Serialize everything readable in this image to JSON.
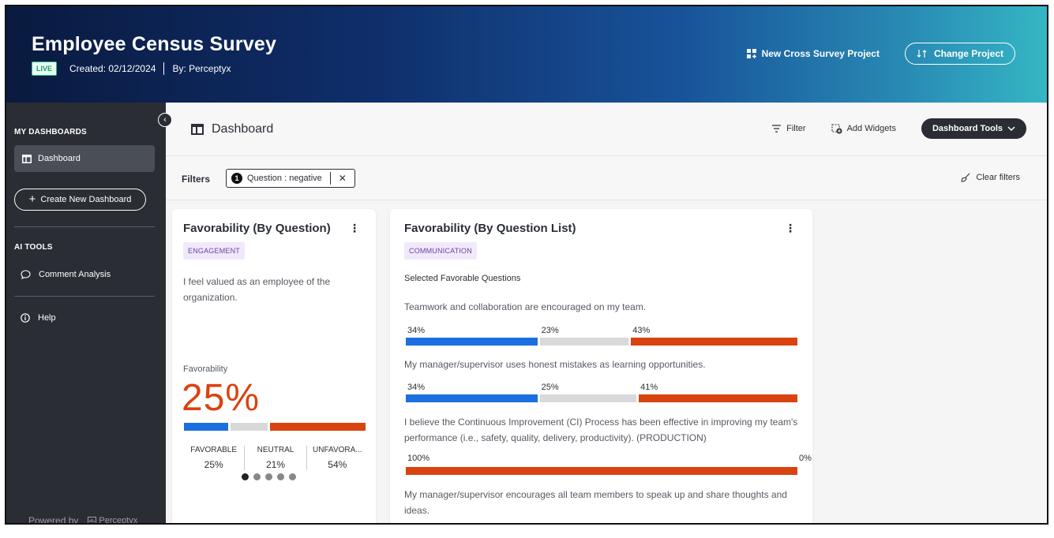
{
  "header": {
    "title": "Employee Census Survey",
    "status": "LIVE",
    "created": "Created: 02/12/2024",
    "by": "By: Perceptyx",
    "new_cross_survey": "New Cross Survey Project",
    "change_project": "Change Project"
  },
  "sidebar": {
    "section_dashboards": "MY DASHBOARDS",
    "active_item": "Dashboard",
    "create_button": "Create New Dashboard",
    "section_ai": "AI TOOLS",
    "comment_analysis": "Comment Analysis",
    "help": "Help",
    "powered_by": "Powered by",
    "brand": "Perceptyx"
  },
  "topbar": {
    "title": "Dashboard",
    "filter": "Filter",
    "add_widgets": "Add Widgets",
    "dashboard_tools": "Dashboard Tools"
  },
  "filters": {
    "label": "Filters",
    "chip_count": "1",
    "chip_text": "Question : negative",
    "clear": "Clear filters"
  },
  "card1": {
    "title": "Favorability (By Question)",
    "tag": "ENGAGEMENT",
    "question": "I feel valued as an employee of the organization.",
    "fav_label": "Favorability",
    "fav_value": "25%",
    "stats": [
      {
        "label": "FAVORABLE",
        "value": "25%"
      },
      {
        "label": "NEUTRAL",
        "value": "21%"
      },
      {
        "label": "UNFAVORA...",
        "value": "54%"
      }
    ],
    "bar": {
      "favorable": 25,
      "neutral": 21,
      "unfavorable": 54
    },
    "dots_total": 5,
    "dots_active": 0
  },
  "card2": {
    "title": "Favorability (By Question List)",
    "tag": "COMMUNICATION",
    "subhead": "Selected Favorable Questions",
    "questions": [
      {
        "text": "Teamwork and collaboration are encouraged on my team.",
        "fav": "34%",
        "neu": "23%",
        "unf": "43%",
        "fav_v": 34,
        "neu_v": 23,
        "unf_v": 43
      },
      {
        "text": "My manager/supervisor uses honest mistakes as learning opportunities.",
        "fav": "34%",
        "neu": "25%",
        "unf": "41%",
        "fav_v": 34,
        "neu_v": 25,
        "unf_v": 41
      },
      {
        "text": "I believe the Continuous Improvement (CI) Process has been effective in improving my team's performance (i.e., safety, quality, delivery, productivity). (PRODUCTION)",
        "fav": "",
        "neu": "",
        "unf": "100%",
        "fav_v": 0,
        "neu_v": 0,
        "unf_v": 100,
        "right_label": "0%"
      },
      {
        "text": "My manager/supervisor encourages all team members to speak up and share thoughts and ideas."
      }
    ]
  },
  "colors": {
    "favorable": "#1b6fe0",
    "neutral": "#d9d9d9",
    "unfavorable": "#d9430f"
  }
}
